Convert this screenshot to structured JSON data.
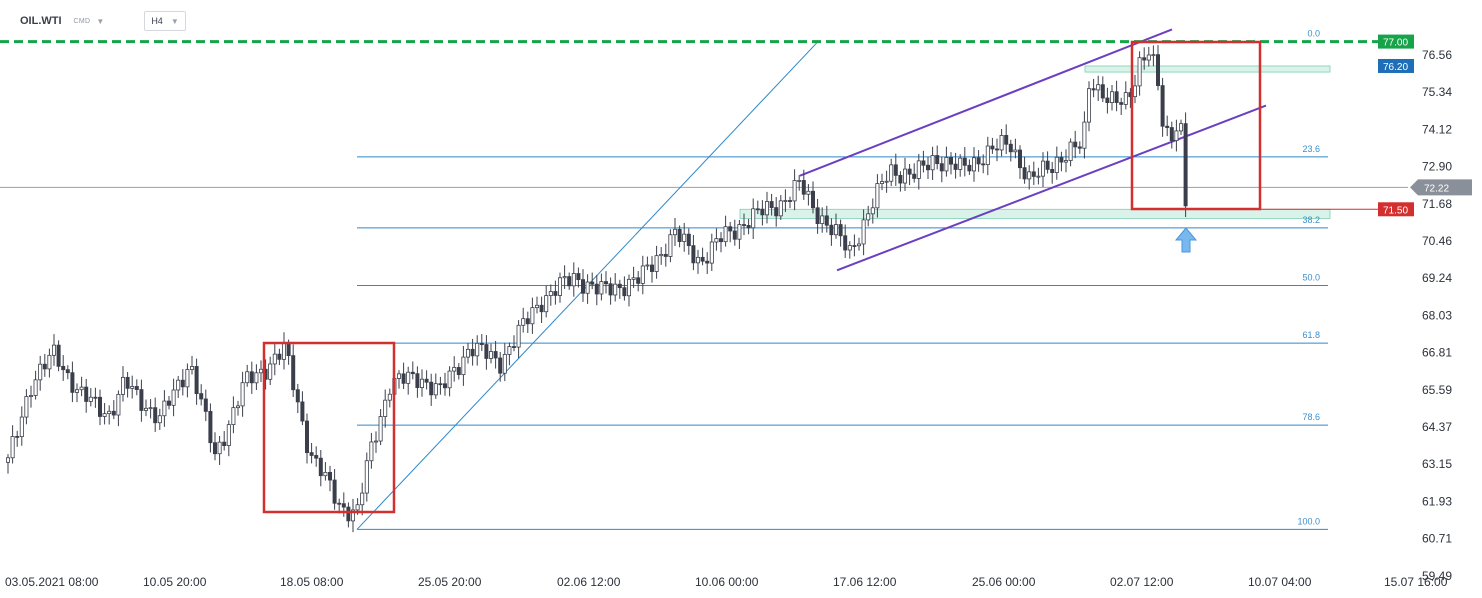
{
  "header": {
    "symbol": "OIL.WTI",
    "market": "CMD",
    "timeframe": "H4"
  },
  "chart_data": {
    "type": "candlestick",
    "y_ticks": [
      "76.56",
      "75.34",
      "74.12",
      "72.90",
      "71.68",
      "70.46",
      "69.24",
      "68.03",
      "66.81",
      "65.59",
      "64.37",
      "63.15",
      "61.93",
      "60.71",
      "59.49"
    ],
    "x_ticks": [
      "03.05.2021  08:00",
      "10.05  20:00",
      "18.05  08:00",
      "25.05  20:00",
      "02.06  12:00",
      "10.06  00:00",
      "17.06  12:00",
      "25.06  00:00",
      "02.07  12:00",
      "10.07  04:00",
      "15.07  16:00"
    ],
    "ylim": [
      59.49,
      77.6
    ],
    "fibonacci": [
      {
        "label": "0.0",
        "price": 77.0
      },
      {
        "label": "23.6",
        "price": 73.22
      },
      {
        "label": "38.2",
        "price": 70.89
      },
      {
        "label": "50.0",
        "price": 69.0
      },
      {
        "label": "61.8",
        "price": 67.11
      },
      {
        "label": "78.6",
        "price": 64.42
      },
      {
        "label": "100.0",
        "price": 61.0
      }
    ],
    "price_tags": [
      {
        "label": "77.00",
        "price": 77.0,
        "color": "#16a34a"
      },
      {
        "label": "76.20",
        "price": 76.2,
        "color": "#1e6fb8"
      },
      {
        "label": "72.22",
        "price": 72.22,
        "color": "#8a9099"
      },
      {
        "label": "71.50",
        "price": 71.5,
        "color": "#d32f2f"
      }
    ],
    "last_price": 72.22,
    "resistance_level": 77.0,
    "support_zones": [
      [
        76.2,
        76.0
      ],
      [
        71.5,
        71.2
      ]
    ],
    "colors": {
      "up": "#ffffff",
      "down": "#3a3f4b",
      "fib": "#2f89c9",
      "channel": "#6a3fc1",
      "box": "#d32f2f",
      "resistance": "#16a34a",
      "arrow": "#78b8ee"
    }
  }
}
